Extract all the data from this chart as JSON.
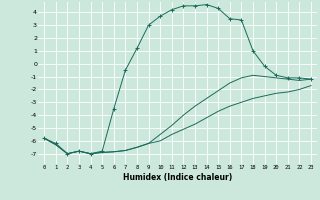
{
  "xlabel": "Humidex (Indice chaleur)",
  "background_color": "#cce8dd",
  "line_color": "#1a6b5a",
  "grid_color": "#ffffff",
  "xlim": [
    -0.5,
    23.5
  ],
  "ylim": [
    -7.8,
    4.8
  ],
  "yticks": [
    -7,
    -6,
    -5,
    -4,
    -3,
    -2,
    -1,
    0,
    1,
    2,
    3,
    4
  ],
  "xtick_labels": [
    "0",
    "1",
    "2",
    "3",
    "4",
    "5",
    "6",
    "7",
    "8",
    "9",
    "10",
    "11",
    "12",
    "13",
    "14",
    "15",
    "16",
    "17",
    "18",
    "19",
    "20",
    "21",
    "22",
    "23"
  ],
  "line1_main": [
    0,
    1,
    2,
    3,
    4,
    5,
    6,
    7,
    8,
    9,
    10,
    11,
    12,
    13,
    14,
    15,
    16,
    17,
    18,
    19,
    20,
    21,
    22,
    23
  ],
  "line1_y": [
    -5.8,
    -6.2,
    -7.0,
    -6.8,
    -7.0,
    -6.8,
    -3.5,
    -0.5,
    1.2,
    3.0,
    3.7,
    4.2,
    4.5,
    4.5,
    4.6,
    4.3,
    3.5,
    3.4,
    1.0,
    -0.2,
    -0.9,
    -1.1,
    -1.1,
    -1.2
  ],
  "line2_y": [
    -5.8,
    -6.3,
    -7.0,
    -6.8,
    -7.0,
    -6.9,
    -6.85,
    -6.75,
    -6.5,
    -6.2,
    -5.5,
    -4.8,
    -4.0,
    -3.3,
    -2.7,
    -2.1,
    -1.5,
    -1.1,
    -0.9,
    -1.0,
    -1.1,
    -1.2,
    -1.3,
    -1.2
  ],
  "line3_y": [
    -5.8,
    -6.3,
    -7.0,
    -6.8,
    -7.0,
    -6.9,
    -6.85,
    -6.75,
    -6.5,
    -6.2,
    -6.0,
    -5.5,
    -5.1,
    -4.7,
    -4.2,
    -3.7,
    -3.3,
    -3.0,
    -2.7,
    -2.5,
    -2.3,
    -2.2,
    -2.0,
    -1.7
  ]
}
